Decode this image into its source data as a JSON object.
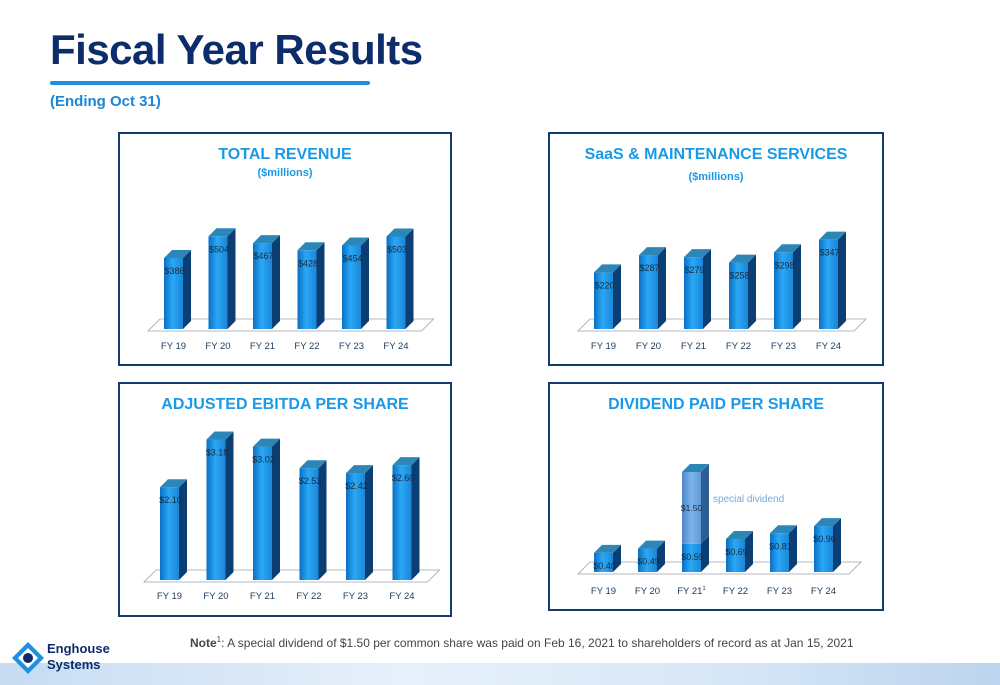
{
  "slide": {
    "title": "Fiscal Year Results",
    "subtitle": "(Ending Oct 31)",
    "note_prefix": "Note",
    "note_sup": "1",
    "note_text": ": A special dividend of $1.50 per common share was paid on Feb 16, 2021 to shareholders of record as at Jan 15, 2021",
    "logo_line1": "Enghouse",
    "logo_line2": "Systems"
  },
  "colors": {
    "title": "#0d2c6b",
    "accent": "#1a9ae6",
    "bar": "#1f8fe0",
    "special": "#6aa3dd",
    "border": "#143c70"
  },
  "chart_data": [
    {
      "type": "bar",
      "title": "TOTAL REVENUE",
      "subtitle": "($millions)",
      "categories": [
        "FY 19",
        "FY 20",
        "FY 21",
        "FY 22",
        "FY 23",
        "FY 24"
      ],
      "values": [
        386,
        504,
        467,
        428,
        454,
        503
      ],
      "labels": [
        "$386",
        "$504",
        "$467",
        "$428",
        "$454",
        "$503"
      ],
      "ylim": [
        0,
        560
      ]
    },
    {
      "type": "bar",
      "title": "SaaS & MAINTENANCE SERVICES",
      "subtitle": "($millions)",
      "categories": [
        "FY 19",
        "FY 20",
        "FY 21",
        "FY 22",
        "FY 23",
        "FY 24"
      ],
      "values": [
        220,
        287,
        279,
        258,
        298,
        347
      ],
      "labels": [
        "$220",
        "$287",
        "$279",
        "$258",
        "$298",
        "$347"
      ],
      "ylim": [
        0,
        400
      ]
    },
    {
      "type": "bar",
      "title": "ADJUSTED EBITDA PER SHARE",
      "subtitle": "",
      "categories": [
        "FY 19",
        "FY 20",
        "FY 21",
        "FY 22",
        "FY 23",
        "FY 24"
      ],
      "values": [
        2.1,
        3.18,
        3.02,
        2.53,
        2.42,
        2.6
      ],
      "labels": [
        "$2.10",
        "$3.18",
        "$3.02",
        "$2.53",
        "$2.42",
        "$2.60"
      ],
      "ylim": [
        0,
        3.35
      ]
    },
    {
      "type": "bar",
      "title": "DIVIDEND PAID PER SHARE",
      "subtitle": "",
      "categories": [
        "FY 19",
        "FY 20",
        "FY 21",
        "FY 22",
        "FY 23",
        "FY 24"
      ],
      "category_sup": [
        "",
        "",
        "1",
        "",
        "",
        ""
      ],
      "values": [
        0.4,
        0.49,
        0.59,
        0.69,
        0.81,
        0.96
      ],
      "labels": [
        "$0.40",
        "$0.49",
        "$0.59",
        "$0.69",
        "$0.81",
        "$0.96"
      ],
      "special": {
        "index": 2,
        "value": 1.5,
        "label": "$1.50",
        "annotation": "special dividend"
      },
      "ylim": [
        0,
        2.3
      ]
    }
  ]
}
